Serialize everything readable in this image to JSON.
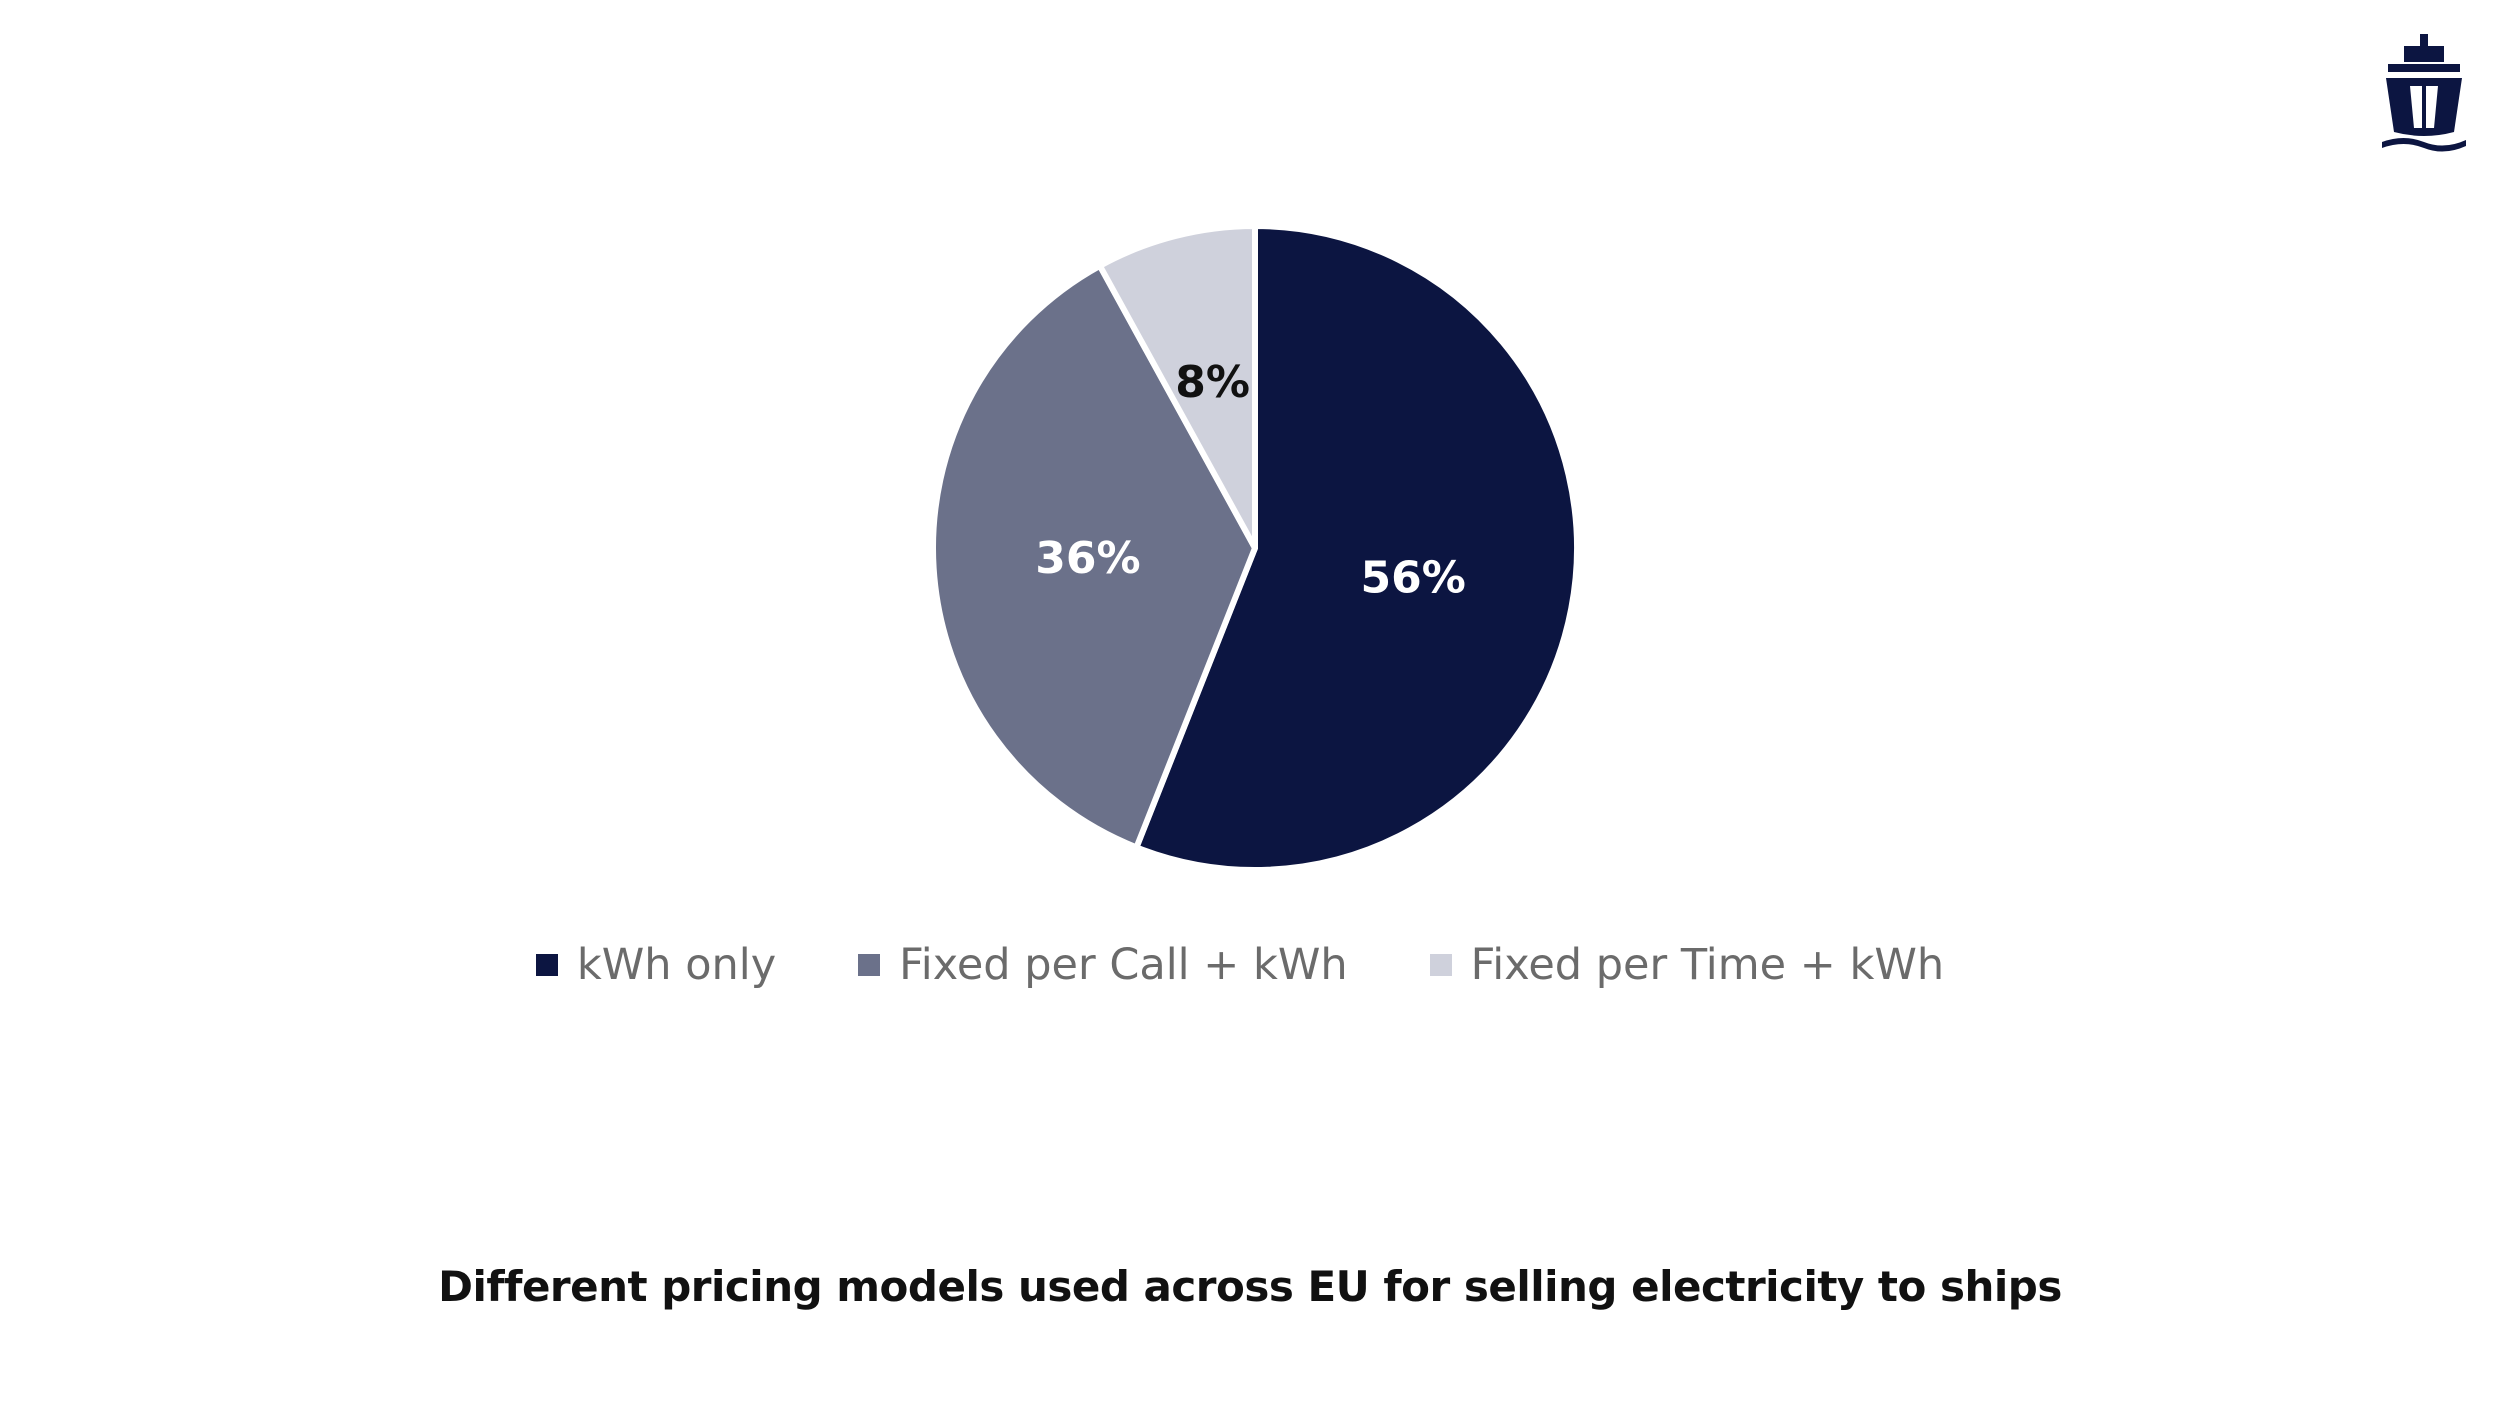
{
  "colors": {
    "kwh_only": "#0c1541",
    "fixed_per_call": "#6b718a",
    "fixed_per_time": "#cfd1dc",
    "label_on_dark": "#ffffff",
    "label_on_light": "#111111",
    "logo": "#0c1541"
  },
  "logo": {
    "icon": "ship-icon"
  },
  "chart_data": {
    "type": "pie",
    "categories": [
      "kWh only",
      "Fixed per Call + kWh",
      "Fixed per Time + kWh"
    ],
    "values": [
      56,
      36,
      8
    ],
    "data_labels": [
      "56%",
      "36%",
      "8%"
    ],
    "legend_position": "bottom",
    "caption": "Different pricing models used across EU for selling electricity to ships"
  }
}
